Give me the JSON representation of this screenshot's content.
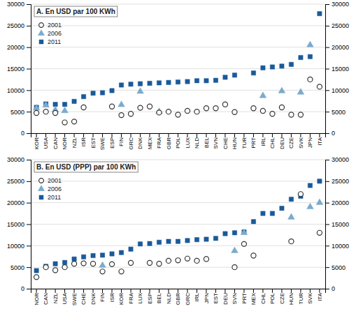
{
  "chart_data": [
    {
      "type": "scatter",
      "title": "A. En USD par 100 KWh",
      "categories": [
        "KOR",
        "USA",
        "CAN",
        "NOR",
        "NZL",
        "ISR",
        "EST",
        "SWE",
        "ESP",
        "FIN",
        "GRC",
        "DNK",
        "MEX",
        "FRA",
        "GBR",
        "POL",
        "LUX",
        "NLD",
        "BEL",
        "SVN",
        "CHE",
        "HUN",
        "TUR",
        "PRT",
        "IRL",
        "CHL",
        "DEU",
        "CZE",
        "SVK",
        "JPN",
        "ITA"
      ],
      "series": [
        {
          "name": "2001",
          "color": "#333333",
          "marker": "circle-open",
          "values": [
            4700,
            5000,
            4700,
            2500,
            2700,
            6000,
            null,
            null,
            6200,
            4200,
            4500,
            5900,
            6200,
            4800,
            5000,
            4300,
            5200,
            5000,
            5800,
            5800,
            6700,
            4900,
            null,
            5800,
            5200,
            4500,
            6000,
            4300,
            4300,
            12500,
            10800
          ]
        },
        {
          "name": "2006",
          "color": "#7aabcc",
          "marker": "triangle",
          "values": [
            5800,
            6500,
            5400,
            5200,
            null,
            null,
            null,
            null,
            null,
            6600,
            null,
            9700,
            null,
            5000,
            null,
            null,
            null,
            null,
            null,
            null,
            null,
            null,
            null,
            null,
            8700,
            null,
            9800,
            null,
            9500,
            20500,
            null
          ]
        },
        {
          "name": "2011",
          "color": "#1a5a9a",
          "marker": "square",
          "values": [
            6000,
            6800,
            6700,
            6700,
            7400,
            8500,
            9300,
            9400,
            9900,
            11200,
            11400,
            11500,
            11600,
            11700,
            11800,
            11900,
            12000,
            12200,
            12200,
            12300,
            13000,
            13500,
            null,
            14000,
            15200,
            15400,
            15600,
            16000,
            17600,
            17800,
            27800
          ]
        }
      ],
      "ylim": [
        0,
        30000
      ],
      "yticks": [
        0,
        5000,
        10000,
        15000,
        20000,
        25000,
        30000
      ],
      "y2lim": [
        0,
        30000
      ],
      "y2ticks": [
        0,
        5000,
        10000,
        15000,
        20000,
        25000,
        30000
      ],
      "grid": true,
      "legend": "upper left"
    },
    {
      "type": "scatter",
      "title": "B. En USD (PPP) par 100 KWh",
      "categories": [
        "NOR",
        "CAN",
        "NZL",
        "USA",
        "SWE",
        "CHE",
        "DNK",
        "FIN",
        "ISR",
        "KOR",
        "FRA",
        "LUX",
        "ESP",
        "BEL",
        "NLD",
        "GBR",
        "GRC",
        "IRL",
        "JPN",
        "EST",
        "DEU",
        "SVN",
        "PRT",
        "MEX",
        "CHL",
        "POL",
        "CZE",
        "HUN",
        "TUR",
        "SVK",
        "ITA"
      ],
      "series": [
        {
          "name": "2001",
          "color": "#333333",
          "marker": "circle-open",
          "values": [
            2700,
            5000,
            4300,
            5000,
            5800,
            5900,
            5800,
            4000,
            5700,
            4000,
            6000,
            null,
            6000,
            5800,
            6500,
            6600,
            7000,
            6500,
            6900,
            null,
            null,
            5000,
            10400,
            7700,
            null,
            null,
            null,
            11000,
            22000,
            null,
            13000
          ]
        },
        {
          "name": "2006",
          "color": "#7aabcc",
          "marker": "triangle",
          "values": [
            null,
            null,
            null,
            null,
            null,
            null,
            null,
            5400,
            null,
            null,
            null,
            null,
            null,
            null,
            null,
            null,
            null,
            null,
            null,
            null,
            null,
            8800,
            13000,
            null,
            null,
            null,
            null,
            16600,
            null,
            19000,
            20000
          ]
        },
        {
          "name": "2011",
          "color": "#1a5a9a",
          "marker": "square",
          "values": [
            4200,
            5200,
            5800,
            6100,
            6900,
            7400,
            7700,
            7800,
            8100,
            8400,
            9200,
            10400,
            10500,
            10800,
            11000,
            11000,
            11200,
            11400,
            11500,
            11700,
            12800,
            13000,
            13200,
            15600,
            17500,
            17500,
            18700,
            20800,
            21500,
            24000,
            25000
          ]
        }
      ],
      "ylim": [
        0,
        30000
      ],
      "yticks": [
        0,
        5000,
        10000,
        15000,
        20000,
        25000,
        30000
      ],
      "y2lim": [
        0,
        30000
      ],
      "y2ticks": [
        0,
        5000,
        10000,
        15000,
        20000,
        25000,
        30000
      ],
      "grid": true,
      "legend": "upper left"
    }
  ]
}
